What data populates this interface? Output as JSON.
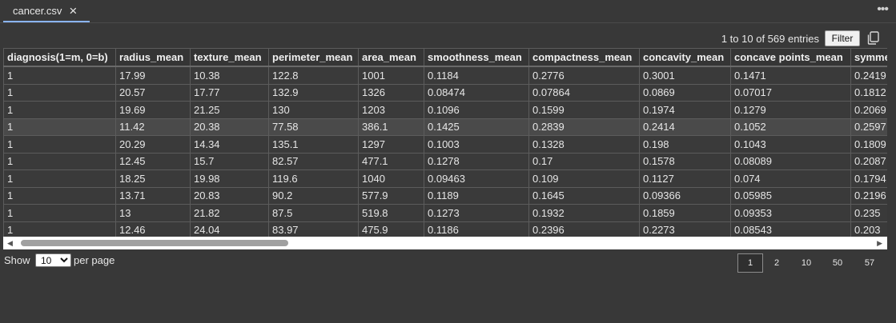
{
  "tab": {
    "label": "cancer.csv"
  },
  "toolbar": {
    "entries_info": "1 to 10 of 569 entries",
    "filter_label": "Filter"
  },
  "icons": {
    "close": "close-icon",
    "more": "more-icon",
    "copy": "copy-icon",
    "scroll_left": "arrow-left-icon",
    "scroll_right": "arrow-right-icon"
  },
  "table": {
    "columns": [
      "diagnosis(1=m, 0=b)",
      "radius_mean",
      "texture_mean",
      "perimeter_mean",
      "area_mean",
      "smoothness_mean",
      "compactness_mean",
      "concavity_mean",
      "concave points_mean",
      "symmetry_mean"
    ],
    "rows": [
      [
        "1",
        "17.99",
        "10.38",
        "122.8",
        "1001",
        "0.1184",
        "0.2776",
        "0.3001",
        "0.1471",
        "0.2419"
      ],
      [
        "1",
        "20.57",
        "17.77",
        "132.9",
        "1326",
        "0.08474",
        "0.07864",
        "0.0869",
        "0.07017",
        "0.1812"
      ],
      [
        "1",
        "19.69",
        "21.25",
        "130",
        "1203",
        "0.1096",
        "0.1599",
        "0.1974",
        "0.1279",
        "0.2069"
      ],
      [
        "1",
        "11.42",
        "20.38",
        "77.58",
        "386.1",
        "0.1425",
        "0.2839",
        "0.2414",
        "0.1052",
        "0.2597"
      ],
      [
        "1",
        "20.29",
        "14.34",
        "135.1",
        "1297",
        "0.1003",
        "0.1328",
        "0.198",
        "0.1043",
        "0.1809"
      ],
      [
        "1",
        "12.45",
        "15.7",
        "82.57",
        "477.1",
        "0.1278",
        "0.17",
        "0.1578",
        "0.08089",
        "0.2087"
      ],
      [
        "1",
        "18.25",
        "19.98",
        "119.6",
        "1040",
        "0.09463",
        "0.109",
        "0.1127",
        "0.074",
        "0.1794"
      ],
      [
        "1",
        "13.71",
        "20.83",
        "90.2",
        "577.9",
        "0.1189",
        "0.1645",
        "0.09366",
        "0.05985",
        "0.2196"
      ],
      [
        "1",
        "13",
        "21.82",
        "87.5",
        "519.8",
        "0.1273",
        "0.1932",
        "0.1859",
        "0.09353",
        "0.235"
      ],
      [
        "1",
        "12.46",
        "24.04",
        "83.97",
        "475.9",
        "0.1186",
        "0.2396",
        "0.2273",
        "0.08543",
        "0.203"
      ]
    ],
    "highlighted_row": 3
  },
  "footer": {
    "show_label": "Show",
    "page_size": "10",
    "per_page_label": "per page",
    "pages": [
      "1",
      "2",
      "10",
      "50",
      "57"
    ],
    "current_page": "1"
  }
}
